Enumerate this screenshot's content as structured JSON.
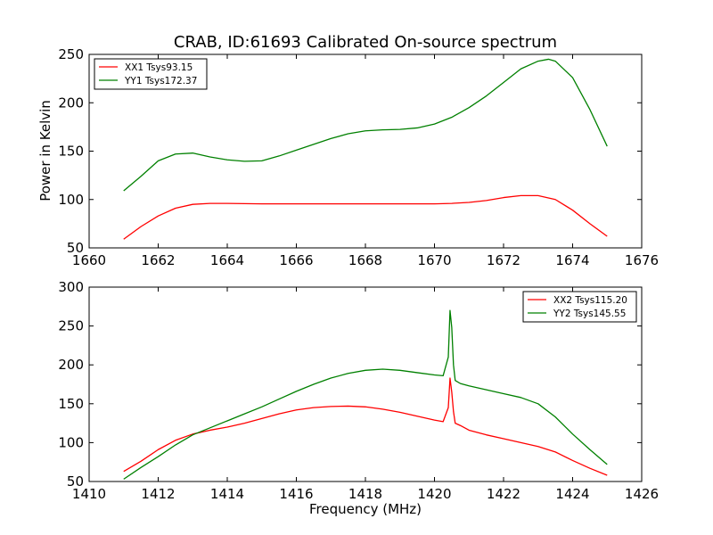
{
  "figure": {
    "title": "CRAB, ID:61693 Calibrated On-source spectrum",
    "ylabel": "Power in Kelvin",
    "xlabel": "Frequency (MHz)"
  },
  "chart_data": [
    {
      "type": "line",
      "xlim": [
        1660,
        1676
      ],
      "ylim": [
        50,
        250
      ],
      "xticks": [
        1660,
        1662,
        1664,
        1666,
        1668,
        1670,
        1672,
        1674,
        1676
      ],
      "yticks": [
        50,
        100,
        150,
        200,
        250
      ],
      "legend": "top-left",
      "series": [
        {
          "name": "XX1 Tsys93.15",
          "color": "#ff0000",
          "x": [
            1661.0,
            1661.5,
            1662.0,
            1662.5,
            1663.0,
            1663.5,
            1664.0,
            1665.0,
            1666.0,
            1667.0,
            1668.0,
            1669.0,
            1670.0,
            1670.5,
            1671.0,
            1671.5,
            1672.0,
            1672.5,
            1673.0,
            1673.5,
            1674.0,
            1674.5,
            1675.0
          ],
          "y": [
            59,
            72,
            83,
            91,
            95,
            96,
            96,
            95.5,
            95.5,
            95.5,
            95.5,
            95.5,
            95.5,
            96,
            97,
            99,
            102,
            104,
            104,
            100,
            89,
            75,
            62
          ]
        },
        {
          "name": "YY1 Tsys172.37",
          "color": "#008000",
          "x": [
            1661.0,
            1661.5,
            1662.0,
            1662.5,
            1663.0,
            1663.5,
            1664.0,
            1664.5,
            1665.0,
            1665.5,
            1666.0,
            1666.5,
            1667.0,
            1667.5,
            1668.0,
            1668.5,
            1669.0,
            1669.5,
            1670.0,
            1670.5,
            1671.0,
            1671.5,
            1672.0,
            1672.5,
            1673.0,
            1673.3,
            1673.5,
            1674.0,
            1674.5,
            1675.0
          ],
          "y": [
            109,
            124,
            140,
            147,
            148,
            144,
            141,
            139.5,
            140,
            145,
            151,
            157,
            163,
            168,
            171,
            172,
            172.5,
            174,
            178,
            185,
            195,
            207,
            221,
            235,
            243,
            245,
            243,
            226,
            193,
            155
          ]
        }
      ]
    },
    {
      "type": "line",
      "xlim": [
        1410,
        1426
      ],
      "ylim": [
        50,
        300
      ],
      "xticks": [
        1410,
        1412,
        1414,
        1416,
        1418,
        1420,
        1422,
        1424,
        1426
      ],
      "yticks": [
        50,
        100,
        150,
        200,
        250,
        300
      ],
      "legend": "top-right",
      "series": [
        {
          "name": "XX2 Tsys115.20",
          "color": "#ff0000",
          "x": [
            1411.0,
            1411.5,
            1412.0,
            1412.5,
            1413.0,
            1413.5,
            1414.0,
            1414.5,
            1415.0,
            1415.5,
            1416.0,
            1416.5,
            1417.0,
            1417.5,
            1418.0,
            1418.5,
            1419.0,
            1419.5,
            1420.0,
            1420.25,
            1420.4,
            1420.45,
            1420.5,
            1420.55,
            1420.6,
            1420.75,
            1421.0,
            1421.5,
            1422.0,
            1422.5,
            1423.0,
            1423.5,
            1424.0,
            1424.5,
            1425.0
          ],
          "y": [
            63,
            76,
            91,
            103,
            111,
            116,
            120,
            125,
            131,
            137,
            142,
            145,
            146.5,
            147,
            146,
            143,
            139,
            134,
            129,
            127,
            145,
            183,
            165,
            140,
            125,
            122,
            116,
            110,
            105,
            100,
            95,
            88,
            77,
            67,
            58
          ],
          "peak": {
            "x": 1420.45,
            "y": 183
          }
        },
        {
          "name": "YY2 Tsys145.55",
          "color": "#008000",
          "x": [
            1411.0,
            1411.5,
            1412.0,
            1412.5,
            1413.0,
            1413.5,
            1414.0,
            1414.5,
            1415.0,
            1415.5,
            1416.0,
            1416.5,
            1417.0,
            1417.5,
            1418.0,
            1418.5,
            1419.0,
            1419.5,
            1420.0,
            1420.25,
            1420.4,
            1420.45,
            1420.5,
            1420.55,
            1420.6,
            1420.75,
            1421.0,
            1421.5,
            1422.0,
            1422.5,
            1423.0,
            1423.5,
            1424.0,
            1424.5,
            1425.0
          ],
          "y": [
            53,
            68,
            82,
            97,
            110,
            119,
            128,
            137,
            146,
            156,
            166,
            175,
            183,
            189,
            193,
            194.5,
            193,
            190,
            187,
            186,
            210,
            270,
            248,
            200,
            180,
            176,
            173,
            168,
            163,
            158,
            150,
            133,
            111,
            91,
            72
          ],
          "peak": {
            "x": 1420.45,
            "y": 270
          }
        }
      ]
    }
  ]
}
